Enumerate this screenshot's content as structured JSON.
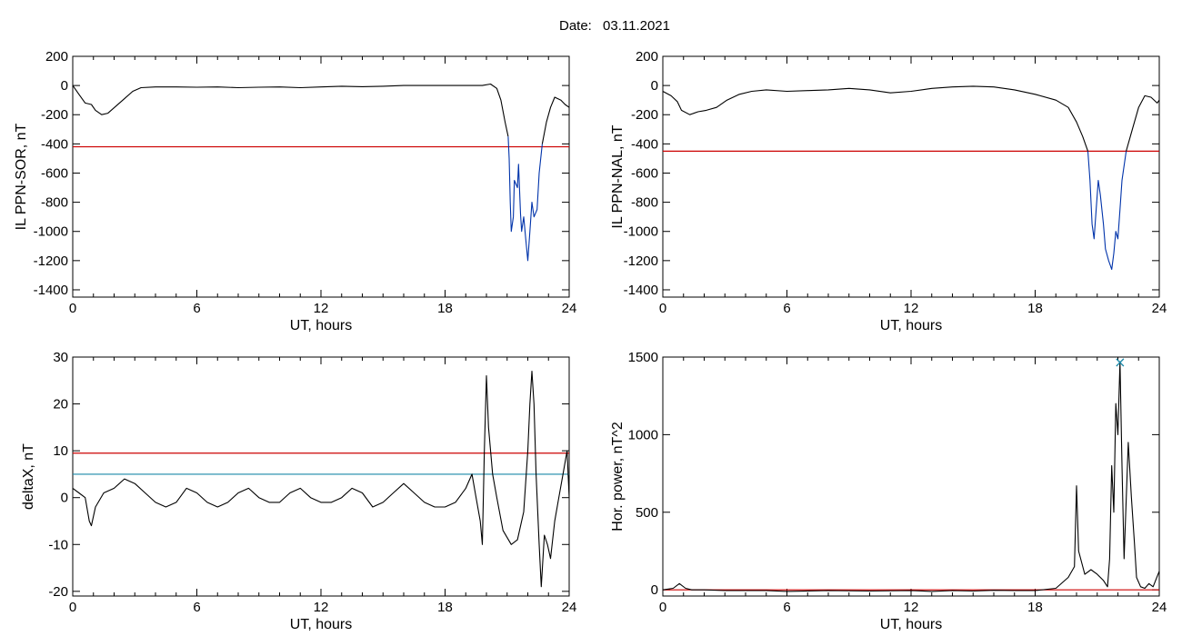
{
  "header": {
    "date_label": "Date:",
    "date_value": "03.11.2021"
  },
  "chart_data": [
    {
      "type": "line",
      "xlabel": "UT, hours",
      "ylabel": "IL PPN-SOR, nT",
      "xlim": [
        0,
        24
      ],
      "ylim": [
        -1450,
        200
      ],
      "xticks": [
        0,
        6,
        12,
        18,
        24
      ],
      "yticks": [
        200,
        0,
        -200,
        -400,
        -600,
        -800,
        -1000,
        -1200,
        -1400
      ],
      "threshold": {
        "y": -420,
        "color": "#cc0000"
      },
      "series": [
        {
          "color": "#000000",
          "points": [
            [
              0,
              0
            ],
            [
              0.3,
              -60
            ],
            [
              0.6,
              -120
            ],
            [
              0.9,
              -130
            ],
            [
              1.1,
              -170
            ],
            [
              1.4,
              -200
            ],
            [
              1.7,
              -190
            ],
            [
              2.1,
              -140
            ],
            [
              2.5,
              -90
            ],
            [
              2.9,
              -40
            ],
            [
              3.3,
              -15
            ],
            [
              4,
              -10
            ],
            [
              5,
              -10
            ],
            [
              6,
              -12
            ],
            [
              7,
              -10
            ],
            [
              8,
              -15
            ],
            [
              9,
              -12
            ],
            [
              10,
              -10
            ],
            [
              11,
              -15
            ],
            [
              12,
              -10
            ],
            [
              13,
              -5
            ],
            [
              14,
              -8
            ],
            [
              15,
              -5
            ],
            [
              16,
              0
            ],
            [
              17,
              0
            ],
            [
              18,
              0
            ],
            [
              19,
              0
            ],
            [
              19.8,
              0
            ],
            [
              20.2,
              10
            ],
            [
              20.5,
              -20
            ],
            [
              20.7,
              -100
            ],
            [
              20.9,
              -250
            ],
            [
              21.05,
              -350
            ]
          ]
        },
        {
          "color": "#0033aa",
          "points": [
            [
              21.05,
              -350
            ],
            [
              21.1,
              -500
            ],
            [
              21.15,
              -800
            ],
            [
              21.2,
              -1000
            ],
            [
              21.3,
              -900
            ],
            [
              21.35,
              -650
            ],
            [
              21.5,
              -700
            ],
            [
              21.55,
              -540
            ],
            [
              21.65,
              -880
            ],
            [
              21.7,
              -1000
            ],
            [
              21.8,
              -900
            ],
            [
              21.9,
              -1050
            ],
            [
              22.0,
              -1200
            ],
            [
              22.1,
              -1000
            ],
            [
              22.2,
              -800
            ],
            [
              22.3,
              -900
            ],
            [
              22.45,
              -850
            ],
            [
              22.55,
              -600
            ],
            [
              22.7,
              -400
            ]
          ]
        },
        {
          "color": "#000000",
          "points": [
            [
              22.7,
              -400
            ],
            [
              22.9,
              -250
            ],
            [
              23.1,
              -150
            ],
            [
              23.3,
              -80
            ],
            [
              23.6,
              -100
            ],
            [
              23.8,
              -130
            ],
            [
              24,
              -150
            ]
          ]
        }
      ]
    },
    {
      "type": "line",
      "xlabel": "UT, hours",
      "ylabel": "IL PPN-NAL, nT",
      "xlim": [
        0,
        24
      ],
      "ylim": [
        -1450,
        200
      ],
      "xticks": [
        0,
        6,
        12,
        18,
        24
      ],
      "yticks": [
        200,
        0,
        -200,
        -400,
        -600,
        -800,
        -1000,
        -1200,
        -1400
      ],
      "threshold": {
        "y": -450,
        "color": "#cc0000"
      },
      "series": [
        {
          "color": "#000000",
          "points": [
            [
              0,
              -40
            ],
            [
              0.4,
              -70
            ],
            [
              0.7,
              -110
            ],
            [
              0.9,
              -170
            ],
            [
              1.3,
              -200
            ],
            [
              1.7,
              -180
            ],
            [
              2.1,
              -170
            ],
            [
              2.6,
              -150
            ],
            [
              3.1,
              -100
            ],
            [
              3.7,
              -60
            ],
            [
              4.3,
              -40
            ],
            [
              5,
              -30
            ],
            [
              6,
              -40
            ],
            [
              7,
              -35
            ],
            [
              8,
              -30
            ],
            [
              9,
              -20
            ],
            [
              10,
              -30
            ],
            [
              11,
              -50
            ],
            [
              12,
              -40
            ],
            [
              13,
              -20
            ],
            [
              14,
              -10
            ],
            [
              15,
              -5
            ],
            [
              16,
              -10
            ],
            [
              17,
              -30
            ],
            [
              18,
              -60
            ],
            [
              19,
              -100
            ],
            [
              19.6,
              -150
            ],
            [
              20,
              -250
            ],
            [
              20.3,
              -350
            ],
            [
              20.55,
              -450
            ]
          ]
        },
        {
          "color": "#0033aa",
          "points": [
            [
              20.55,
              -450
            ],
            [
              20.65,
              -650
            ],
            [
              20.75,
              -950
            ],
            [
              20.85,
              -1050
            ],
            [
              20.95,
              -850
            ],
            [
              21.05,
              -650
            ],
            [
              21.15,
              -750
            ],
            [
              21.3,
              -950
            ],
            [
              21.4,
              -1120
            ],
            [
              21.55,
              -1200
            ],
            [
              21.7,
              -1260
            ],
            [
              21.8,
              -1150
            ],
            [
              21.9,
              -1000
            ],
            [
              22.0,
              -1050
            ],
            [
              22.1,
              -850
            ],
            [
              22.2,
              -650
            ],
            [
              22.4,
              -450
            ]
          ]
        },
        {
          "color": "#000000",
          "points": [
            [
              22.4,
              -450
            ],
            [
              22.7,
              -300
            ],
            [
              23.0,
              -150
            ],
            [
              23.3,
              -70
            ],
            [
              23.6,
              -80
            ],
            [
              23.9,
              -120
            ],
            [
              24,
              -100
            ]
          ]
        }
      ]
    },
    {
      "type": "line",
      "xlabel": "UT, hours",
      "ylabel": "deltaX, nT",
      "xlim": [
        0,
        24
      ],
      "ylim": [
        -21,
        30
      ],
      "xticks": [
        0,
        6,
        12,
        18,
        24
      ],
      "yticks": [
        30,
        20,
        10,
        0,
        -10,
        -20
      ],
      "thresholds": [
        {
          "y": 9.5,
          "color": "#cc0000"
        },
        {
          "y": 5,
          "color": "#1a88a8"
        }
      ],
      "series": [
        {
          "color": "#000000",
          "points": [
            [
              0,
              2
            ],
            [
              0.3,
              1
            ],
            [
              0.6,
              0
            ],
            [
              0.8,
              -5
            ],
            [
              0.9,
              -6
            ],
            [
              1.1,
              -2
            ],
            [
              1.5,
              1
            ],
            [
              2,
              2
            ],
            [
              2.5,
              4
            ],
            [
              3,
              3
            ],
            [
              3.5,
              1
            ],
            [
              4,
              -1
            ],
            [
              4.5,
              -2
            ],
            [
              5,
              -1
            ],
            [
              5.5,
              2
            ],
            [
              6,
              1
            ],
            [
              6.5,
              -1
            ],
            [
              7,
              -2
            ],
            [
              7.5,
              -1
            ],
            [
              8,
              1
            ],
            [
              8.5,
              2
            ],
            [
              9,
              0
            ],
            [
              9.5,
              -1
            ],
            [
              10,
              -1
            ],
            [
              10.5,
              1
            ],
            [
              11,
              2
            ],
            [
              11.5,
              0
            ],
            [
              12,
              -1
            ],
            [
              12.5,
              -1
            ],
            [
              13,
              0
            ],
            [
              13.5,
              2
            ],
            [
              14,
              1
            ],
            [
              14.5,
              -2
            ],
            [
              15,
              -1
            ],
            [
              15.5,
              1
            ],
            [
              16,
              3
            ],
            [
              16.5,
              1
            ],
            [
              17,
              -1
            ],
            [
              17.5,
              -2
            ],
            [
              18,
              -2
            ],
            [
              18.5,
              -1
            ],
            [
              19,
              2
            ],
            [
              19.3,
              5
            ],
            [
              19.5,
              0
            ],
            [
              19.7,
              -5
            ],
            [
              19.8,
              -10
            ],
            [
              19.9,
              10
            ],
            [
              20.0,
              26
            ],
            [
              20.1,
              15
            ],
            [
              20.3,
              5
            ],
            [
              20.5,
              0
            ],
            [
              20.8,
              -7
            ],
            [
              21.2,
              -10
            ],
            [
              21.5,
              -9
            ],
            [
              21.8,
              -3
            ],
            [
              22.0,
              10
            ],
            [
              22.1,
              20
            ],
            [
              22.2,
              27
            ],
            [
              22.3,
              20
            ],
            [
              22.4,
              5
            ],
            [
              22.55,
              -10
            ],
            [
              22.65,
              -19
            ],
            [
              22.8,
              -8
            ],
            [
              22.95,
              -10
            ],
            [
              23.1,
              -13
            ],
            [
              23.3,
              -5
            ],
            [
              23.5,
              0
            ],
            [
              23.7,
              5
            ],
            [
              23.9,
              10
            ],
            [
              24,
              0
            ]
          ]
        }
      ]
    },
    {
      "type": "line",
      "xlabel": "UT, hours",
      "ylabel": "Hor. power, nT^2",
      "xlim": [
        0,
        24
      ],
      "ylim": [
        -40,
        1500
      ],
      "xticks": [
        0,
        6,
        12,
        18,
        24
      ],
      "yticks": [
        1500,
        1000,
        500,
        0
      ],
      "threshold": {
        "y": 0,
        "color": "#cc0000"
      },
      "peak_marker": {
        "x": 22.1,
        "y": 1470,
        "symbol": "×",
        "color": "#1a88a8"
      },
      "series": [
        {
          "color": "#000000",
          "points": [
            [
              0,
              0
            ],
            [
              0.5,
              10
            ],
            [
              0.8,
              40
            ],
            [
              1.1,
              10
            ],
            [
              1.4,
              0
            ],
            [
              2,
              0
            ],
            [
              3,
              -5
            ],
            [
              5,
              -5
            ],
            [
              6,
              -10
            ],
            [
              8,
              -5
            ],
            [
              10,
              -8
            ],
            [
              12,
              -5
            ],
            [
              13,
              -10
            ],
            [
              14,
              -5
            ],
            [
              15,
              -8
            ],
            [
              16,
              -3
            ],
            [
              17,
              -5
            ],
            [
              18,
              -5
            ],
            [
              19,
              10
            ],
            [
              19.6,
              80
            ],
            [
              19.9,
              150
            ],
            [
              20.0,
              670
            ],
            [
              20.1,
              250
            ],
            [
              20.4,
              100
            ],
            [
              20.7,
              130
            ],
            [
              21.0,
              100
            ],
            [
              21.3,
              60
            ],
            [
              21.5,
              20
            ],
            [
              21.6,
              200
            ],
            [
              21.7,
              800
            ],
            [
              21.8,
              500
            ],
            [
              21.9,
              1200
            ],
            [
              22.0,
              1000
            ],
            [
              22.1,
              1470
            ],
            [
              22.2,
              800
            ],
            [
              22.3,
              200
            ],
            [
              22.5,
              950
            ],
            [
              22.65,
              600
            ],
            [
              22.8,
              300
            ],
            [
              22.9,
              80
            ],
            [
              23.1,
              20
            ],
            [
              23.3,
              10
            ],
            [
              23.5,
              40
            ],
            [
              23.7,
              20
            ],
            [
              24,
              120
            ]
          ]
        }
      ]
    }
  ]
}
